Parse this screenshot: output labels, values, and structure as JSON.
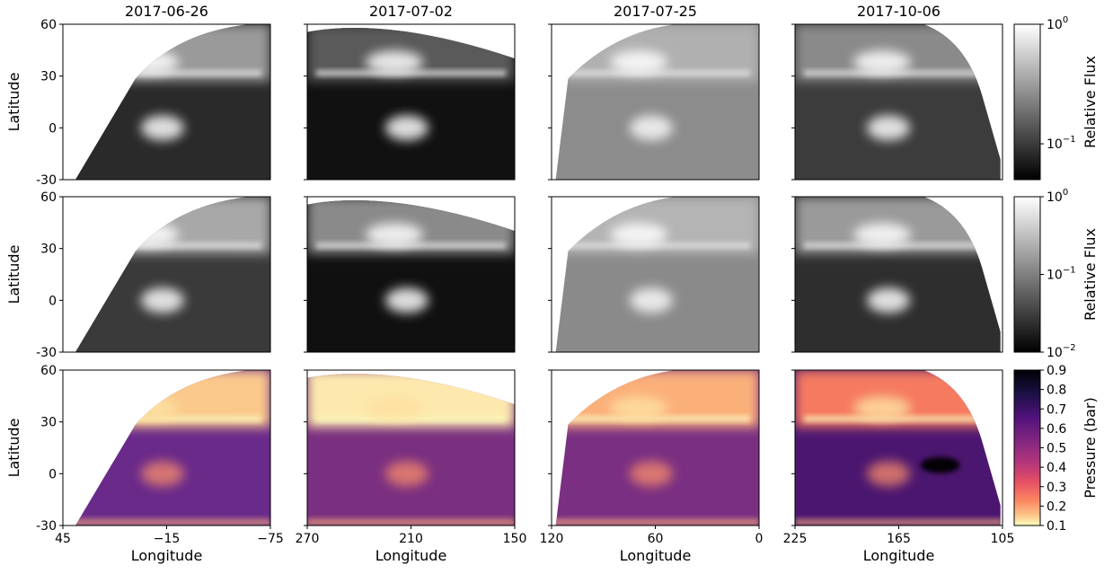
{
  "chart_data": {
    "type": "heatmap",
    "dates": [
      "2017-06-26",
      "2017-07-02",
      "2017-07-25",
      "2017-10-06"
    ],
    "row_ylabel": "Latitude",
    "col_xlabel": "Longitude",
    "yticks": [
      60,
      30,
      0,
      -30
    ],
    "ylim": [
      -30,
      60
    ],
    "xlims": [
      [
        45,
        -75
      ],
      [
        270,
        150
      ],
      [
        120,
        0
      ],
      [
        225,
        105
      ]
    ],
    "xticks": [
      [
        45,
        -15,
        -75
      ],
      [
        270,
        210,
        150
      ],
      [
        120,
        60,
        0
      ],
      [
        225,
        165,
        105
      ]
    ],
    "colorbars": [
      {
        "label": "Relative Flux",
        "scale": "log",
        "ticks": [
          "10^0",
          "10^-1"
        ],
        "colormap": "gray"
      },
      {
        "label": "Relative Flux",
        "scale": "log",
        "ticks": [
          "10^0",
          "10^-1",
          "10^-2"
        ],
        "colormap": "gray"
      },
      {
        "label": "Pressure (bar)",
        "scale": "linear",
        "range": [
          0.1,
          0.9
        ],
        "ticks": [
          "0.9",
          "0.8",
          "0.7",
          "0.6",
          "0.5",
          "0.4",
          "0.3",
          "0.2",
          "0.1"
        ],
        "colormap": "magma_r"
      }
    ],
    "rows": [
      {
        "variable": "Relative Flux"
      },
      {
        "variable": "Relative Flux"
      },
      {
        "variable": "Pressure (bar)"
      }
    ],
    "features": "Two bright spots at about 35° and 0° latitude, with a band near 30°; the Pressure map is lower near the bright features."
  },
  "colors": {
    "gray_low": "#000000",
    "gray_high": "#ffffff",
    "magma_low_pressure": "#fcfdbf",
    "magma_high_pressure": "#000004"
  }
}
